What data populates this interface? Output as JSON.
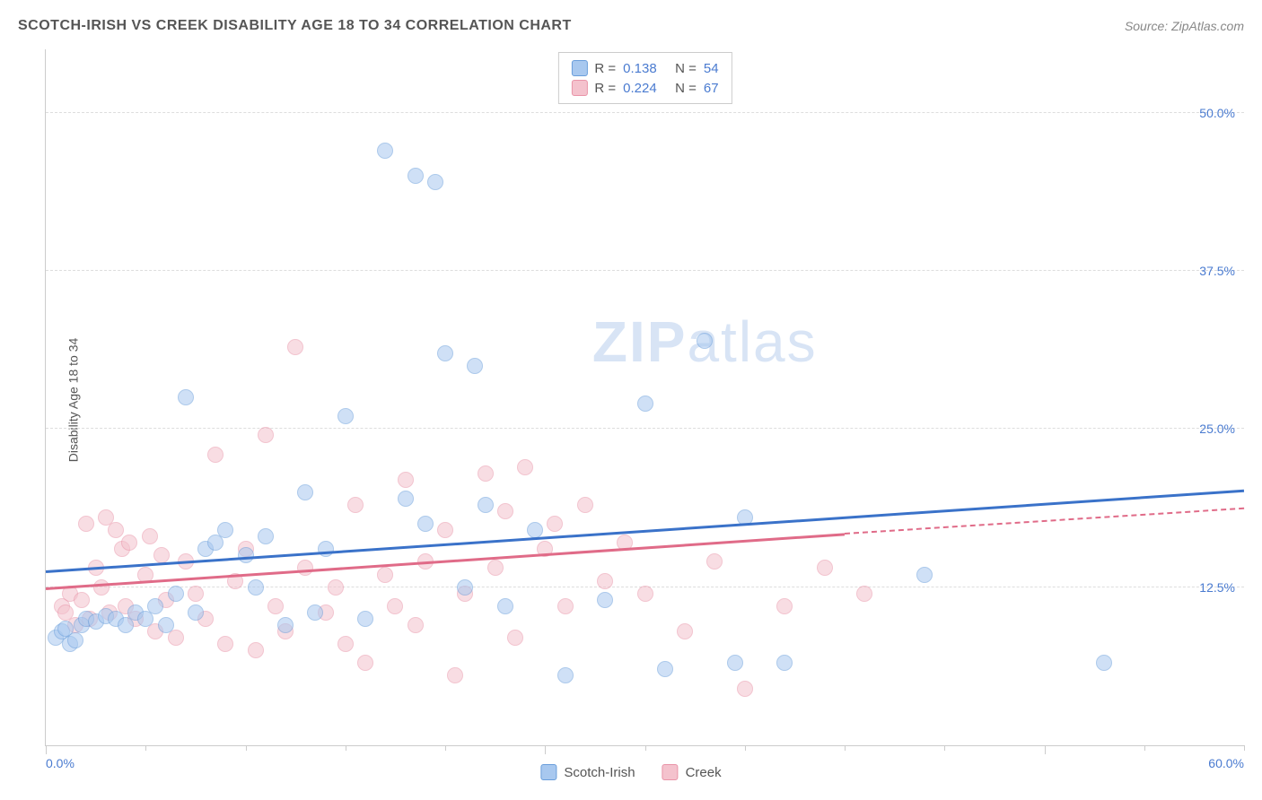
{
  "title": "SCOTCH-IRISH VS CREEK DISABILITY AGE 18 TO 34 CORRELATION CHART",
  "source": "Source: ZipAtlas.com",
  "y_axis_label": "Disability Age 18 to 34",
  "watermark": {
    "zip": "ZIP",
    "atlas": "atlas",
    "color": "#d8e4f5",
    "fontsize": 64
  },
  "chart": {
    "type": "scatter",
    "xlim": [
      0,
      60
    ],
    "ylim": [
      0,
      55
    ],
    "x_ticks_major": [
      0,
      25,
      50
    ],
    "x_ticks_minor": [
      5,
      10,
      15,
      20,
      30,
      35,
      40,
      45,
      55,
      60
    ],
    "x_tick_labels": [
      {
        "pos": 0,
        "text": "0.0%"
      },
      {
        "pos": 60,
        "text": "60.0%"
      }
    ],
    "y_gridlines": [
      12.5,
      25.0,
      37.5,
      50.0
    ],
    "y_tick_labels": [
      "12.5%",
      "25.0%",
      "37.5%",
      "50.0%"
    ],
    "background_color": "#ffffff",
    "grid_color": "#dddddd",
    "axis_color": "#cccccc",
    "tick_label_color": "#4a7bd0",
    "marker_radius": 9,
    "marker_opacity": 0.55,
    "series": [
      {
        "name": "Scotch-Irish",
        "fill": "#a8c8ef",
        "stroke": "#6a9edb",
        "line_color": "#3a72c9",
        "R": "0.138",
        "N": "54",
        "trend": {
          "x1": 0,
          "y1": 13.8,
          "x2": 60,
          "y2": 20.2,
          "dash_from": 60
        },
        "points": [
          [
            0.5,
            8.5
          ],
          [
            0.8,
            9.0
          ],
          [
            1.0,
            9.2
          ],
          [
            1.2,
            8.0
          ],
          [
            1.5,
            8.3
          ],
          [
            1.8,
            9.5
          ],
          [
            2.0,
            10.0
          ],
          [
            2.5,
            9.8
          ],
          [
            3.0,
            10.2
          ],
          [
            3.5,
            10.0
          ],
          [
            4.0,
            9.5
          ],
          [
            4.5,
            10.5
          ],
          [
            5.0,
            10.0
          ],
          [
            5.5,
            11.0
          ],
          [
            6.0,
            9.5
          ],
          [
            6.5,
            12.0
          ],
          [
            7.0,
            27.5
          ],
          [
            7.5,
            10.5
          ],
          [
            8.0,
            15.5
          ],
          [
            8.5,
            16.0
          ],
          [
            9.0,
            17.0
          ],
          [
            10.0,
            15.0
          ],
          [
            10.5,
            12.5
          ],
          [
            11.0,
            16.5
          ],
          [
            12.0,
            9.5
          ],
          [
            13.0,
            20.0
          ],
          [
            13.5,
            10.5
          ],
          [
            14.0,
            15.5
          ],
          [
            15.0,
            26.0
          ],
          [
            16.0,
            10.0
          ],
          [
            17.0,
            47.0
          ],
          [
            18.0,
            19.5
          ],
          [
            18.5,
            45.0
          ],
          [
            19.0,
            17.5
          ],
          [
            19.5,
            44.5
          ],
          [
            20.0,
            31.0
          ],
          [
            21.0,
            12.5
          ],
          [
            21.5,
            30.0
          ],
          [
            22.0,
            19.0
          ],
          [
            23.0,
            11.0
          ],
          [
            24.5,
            17.0
          ],
          [
            26.0,
            5.5
          ],
          [
            28.0,
            11.5
          ],
          [
            30.0,
            27.0
          ],
          [
            31.0,
            6.0
          ],
          [
            33.0,
            32.0
          ],
          [
            34.5,
            6.5
          ],
          [
            35.0,
            18.0
          ],
          [
            37.0,
            6.5
          ],
          [
            44.0,
            13.5
          ],
          [
            53.0,
            6.5
          ]
        ]
      },
      {
        "name": "Creek",
        "fill": "#f4c2cd",
        "stroke": "#e994a8",
        "line_color": "#e06b88",
        "R": "0.224",
        "N": "67",
        "trend": {
          "x1": 0,
          "y1": 12.5,
          "x2": 40,
          "y2": 16.8,
          "dash_from": 40,
          "dash_x2": 60,
          "dash_y2": 18.8
        },
        "points": [
          [
            0.8,
            11.0
          ],
          [
            1.0,
            10.5
          ],
          [
            1.2,
            12.0
          ],
          [
            1.5,
            9.5
          ],
          [
            1.8,
            11.5
          ],
          [
            2.0,
            17.5
          ],
          [
            2.2,
            10.0
          ],
          [
            2.5,
            14.0
          ],
          [
            2.8,
            12.5
          ],
          [
            3.0,
            18.0
          ],
          [
            3.2,
            10.5
          ],
          [
            3.5,
            17.0
          ],
          [
            3.8,
            15.5
          ],
          [
            4.0,
            11.0
          ],
          [
            4.2,
            16.0
          ],
          [
            4.5,
            10.0
          ],
          [
            5.0,
            13.5
          ],
          [
            5.2,
            16.5
          ],
          [
            5.5,
            9.0
          ],
          [
            5.8,
            15.0
          ],
          [
            6.0,
            11.5
          ],
          [
            6.5,
            8.5
          ],
          [
            7.0,
            14.5
          ],
          [
            7.5,
            12.0
          ],
          [
            8.0,
            10.0
          ],
          [
            8.5,
            23.0
          ],
          [
            9.0,
            8.0
          ],
          [
            9.5,
            13.0
          ],
          [
            10.0,
            15.5
          ],
          [
            10.5,
            7.5
          ],
          [
            11.0,
            24.5
          ],
          [
            11.5,
            11.0
          ],
          [
            12.0,
            9.0
          ],
          [
            12.5,
            31.5
          ],
          [
            13.0,
            14.0
          ],
          [
            14.0,
            10.5
          ],
          [
            14.5,
            12.5
          ],
          [
            15.0,
            8.0
          ],
          [
            15.5,
            19.0
          ],
          [
            16.0,
            6.5
          ],
          [
            17.0,
            13.5
          ],
          [
            17.5,
            11.0
          ],
          [
            18.0,
            21.0
          ],
          [
            18.5,
            9.5
          ],
          [
            19.0,
            14.5
          ],
          [
            20.0,
            17.0
          ],
          [
            20.5,
            5.5
          ],
          [
            21.0,
            12.0
          ],
          [
            22.0,
            21.5
          ],
          [
            22.5,
            14.0
          ],
          [
            23.0,
            18.5
          ],
          [
            23.5,
            8.5
          ],
          [
            24.0,
            22.0
          ],
          [
            25.0,
            15.5
          ],
          [
            25.5,
            17.5
          ],
          [
            26.0,
            11.0
          ],
          [
            27.0,
            19.0
          ],
          [
            28.0,
            13.0
          ],
          [
            29.0,
            16.0
          ],
          [
            30.0,
            12.0
          ],
          [
            32.0,
            9.0
          ],
          [
            33.5,
            14.5
          ],
          [
            35.0,
            4.5
          ],
          [
            37.0,
            11.0
          ],
          [
            39.0,
            14.0
          ],
          [
            41.0,
            12.0
          ]
        ]
      }
    ]
  },
  "legend": {
    "r_label": "R =",
    "n_label": "N =",
    "swatch_border_radius": 3
  },
  "bottom_legend_labels": [
    "Scotch-Irish",
    "Creek"
  ]
}
